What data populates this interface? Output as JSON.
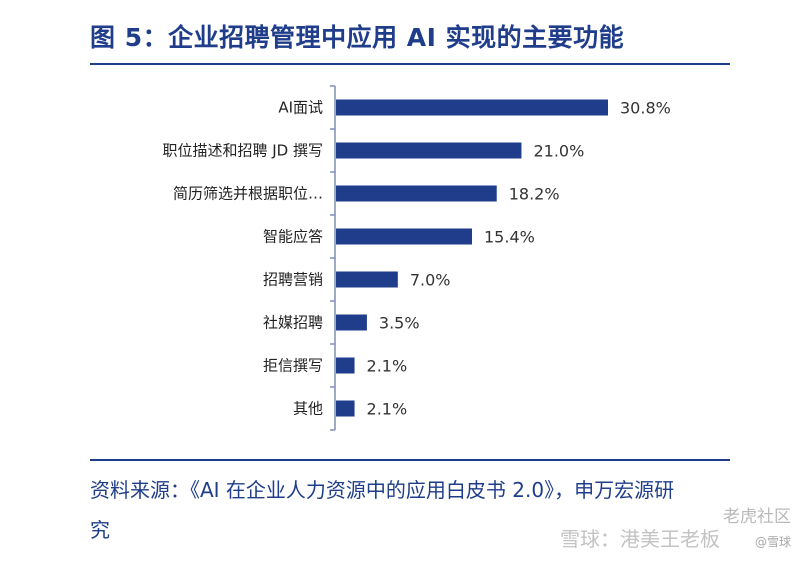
{
  "header": {
    "title": "图 5：企业招聘管理中应用 AI 实现的主要功能"
  },
  "chart_data": {
    "type": "bar",
    "orientation": "horizontal",
    "categories": [
      "AI面试",
      "职位描述和招聘 JD 撰写",
      "简历筛选并根据职位…",
      "智能应答",
      "招聘营销",
      "社媒招聘",
      "拒信撰写",
      "其他"
    ],
    "values": [
      30.8,
      21.0,
      18.2,
      15.4,
      7.0,
      3.5,
      2.1,
      2.1
    ],
    "value_labels": [
      "30.8%",
      "21.0%",
      "18.2%",
      "15.4%",
      "7.0%",
      "3.5%",
      "2.1%",
      "2.1%"
    ],
    "unit": "%",
    "xlim": [
      0,
      30.8
    ],
    "grid": false,
    "bar_color": "#1f3d8a",
    "title": "",
    "xlabel": "",
    "ylabel": ""
  },
  "footer": {
    "source": "资料来源：《AI 在企业人力资源中的应用白皮书 2.0》，申万宏源研究"
  },
  "watermark": {
    "line1": "老虎社区",
    "line2": "雪球：港美王老板",
    "line3": "@雪球"
  },
  "colors": {
    "accent": "#1f3d8a",
    "axis": "#7f8fb5"
  }
}
